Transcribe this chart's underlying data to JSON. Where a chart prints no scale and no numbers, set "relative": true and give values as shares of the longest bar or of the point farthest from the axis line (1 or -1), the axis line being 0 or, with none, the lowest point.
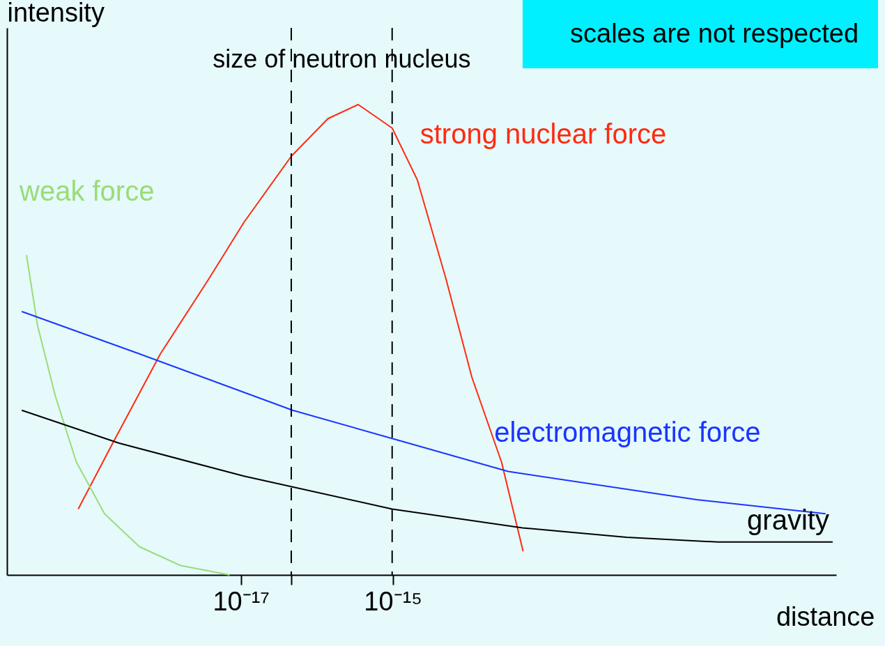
{
  "chart_data": {
    "type": "line",
    "relative": true,
    "log": "x",
    "ylabel": "intensity",
    "xlabel": "distance",
    "xlim": [
      8.3e-21,
      6.9e-10
    ],
    "xticks": [
      {
        "value": 1e-17,
        "label": "10⁻¹⁷"
      },
      {
        "value": 4.6e-17,
        "label": null
      },
      {
        "value": 1e-15,
        "label": "10⁻¹⁵"
      }
    ],
    "grid": false,
    "legend": false,
    "marker": "none",
    "line_style": "solid",
    "series": [
      {
        "name": "strong nuclear force",
        "color": "#ff2a10",
        "x": [
          7.2e-20,
          1.9e-19,
          8.7e-19,
          3.8e-18,
          1.1e-17,
          4.6e-17,
          1.4e-16,
          3.5e-16,
          9.8e-16,
          2.1e-15,
          5e-15,
          1.1e-14,
          2.7e-14,
          5.2e-14
        ],
        "values": [
          0.14,
          0.27,
          0.47,
          0.63,
          0.75,
          0.89,
          0.97,
          1.0,
          0.95,
          0.84,
          0.63,
          0.42,
          0.24,
          0.05
        ]
      },
      {
        "name": "weak force",
        "color": "#99dd77",
        "x": [
          1.5e-20,
          2.1e-20,
          3.6e-20,
          6.8e-20,
          1.6e-19,
          4.6e-19,
          1.6e-18,
          7.1e-18
        ],
        "values": [
          0.68,
          0.53,
          0.38,
          0.24,
          0.13,
          0.06,
          0.02,
          0.0
        ]
      },
      {
        "name": "electromagnetic force",
        "color": "#1a35ff",
        "x": [
          1.3e-20,
          4.6e-19,
          4.8e-17,
          9.8e-16,
          3.3e-14,
          1e-11,
          5e-10
        ],
        "values": [
          0.56,
          0.47,
          0.35,
          0.29,
          0.22,
          0.16,
          0.13
        ]
      },
      {
        "name": "gravity",
        "color": "#000000",
        "x": [
          1.3e-20,
          2.5e-19,
          1.1e-17,
          9.8e-16,
          5.1e-14,
          1.2e-12,
          1.9e-11,
          6.2e-10
        ],
        "values": [
          0.35,
          0.28,
          0.21,
          0.14,
          0.1,
          0.08,
          0.07,
          0.07
        ]
      }
    ],
    "ref_lines": [
      {
        "axis": "x",
        "value": 4.6e-17,
        "color": "#000000",
        "line_style": "dashed"
      },
      {
        "axis": "x",
        "value": 9.8e-16,
        "color": "#000000",
        "line_style": "dashed"
      }
    ],
    "annotations": [
      "size of neutron nucleus",
      "scales are not respected"
    ]
  }
}
